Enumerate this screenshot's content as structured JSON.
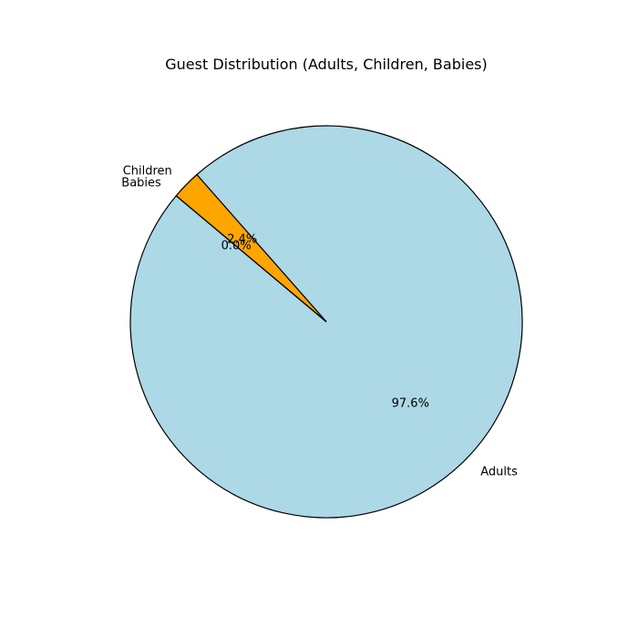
{
  "chart_data": {
    "type": "pie",
    "title": "Guest Distribution (Adults, Children, Babies)",
    "categories": [
      "Adults",
      "Children",
      "Babies"
    ],
    "values": [
      97.6,
      2.4,
      0.0
    ],
    "percent_labels": [
      "97.6%",
      "2.4%",
      "0.0%"
    ],
    "colors": [
      "#add8e6",
      "#ffa500",
      "#e6e6e6"
    ],
    "start_angle_deg": 140,
    "counterclockwise": true,
    "edge_color": "#000000",
    "legend": "none"
  }
}
